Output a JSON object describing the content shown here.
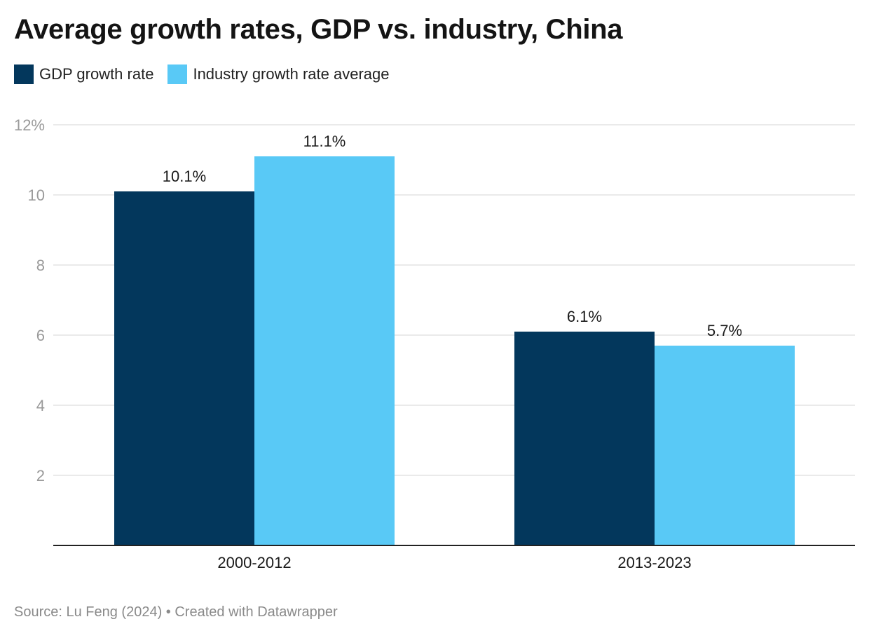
{
  "chart_data": {
    "type": "bar",
    "title": "Average growth rates, GDP vs. industry, China",
    "categories": [
      "2000-2012",
      "2013-2023"
    ],
    "series": [
      {
        "name": "GDP growth rate",
        "values": [
          10.1,
          6.1
        ],
        "labels": [
          "10.1%",
          "6.1%"
        ],
        "color": "#03375C"
      },
      {
        "name": "Industry growth rate average",
        "values": [
          11.1,
          5.7
        ],
        "labels": [
          "11.1%",
          "5.7%"
        ],
        "color": "#59C9F6"
      }
    ],
    "xlabel": "",
    "ylabel": "",
    "ylim": [
      0,
      12
    ],
    "yticks": [
      2,
      4,
      6,
      8,
      10,
      12
    ],
    "ytick_labels": [
      "2",
      "4",
      "6",
      "8",
      "10",
      "12%"
    ],
    "grid": true,
    "legend": "top-left"
  },
  "footer": {
    "source": "Source: Lu Feng (2024) • Created with Datawrapper"
  },
  "colors": {
    "gridline": "#e3e3e3",
    "axis": "#222222",
    "tick_text": "#9a9a9a"
  }
}
